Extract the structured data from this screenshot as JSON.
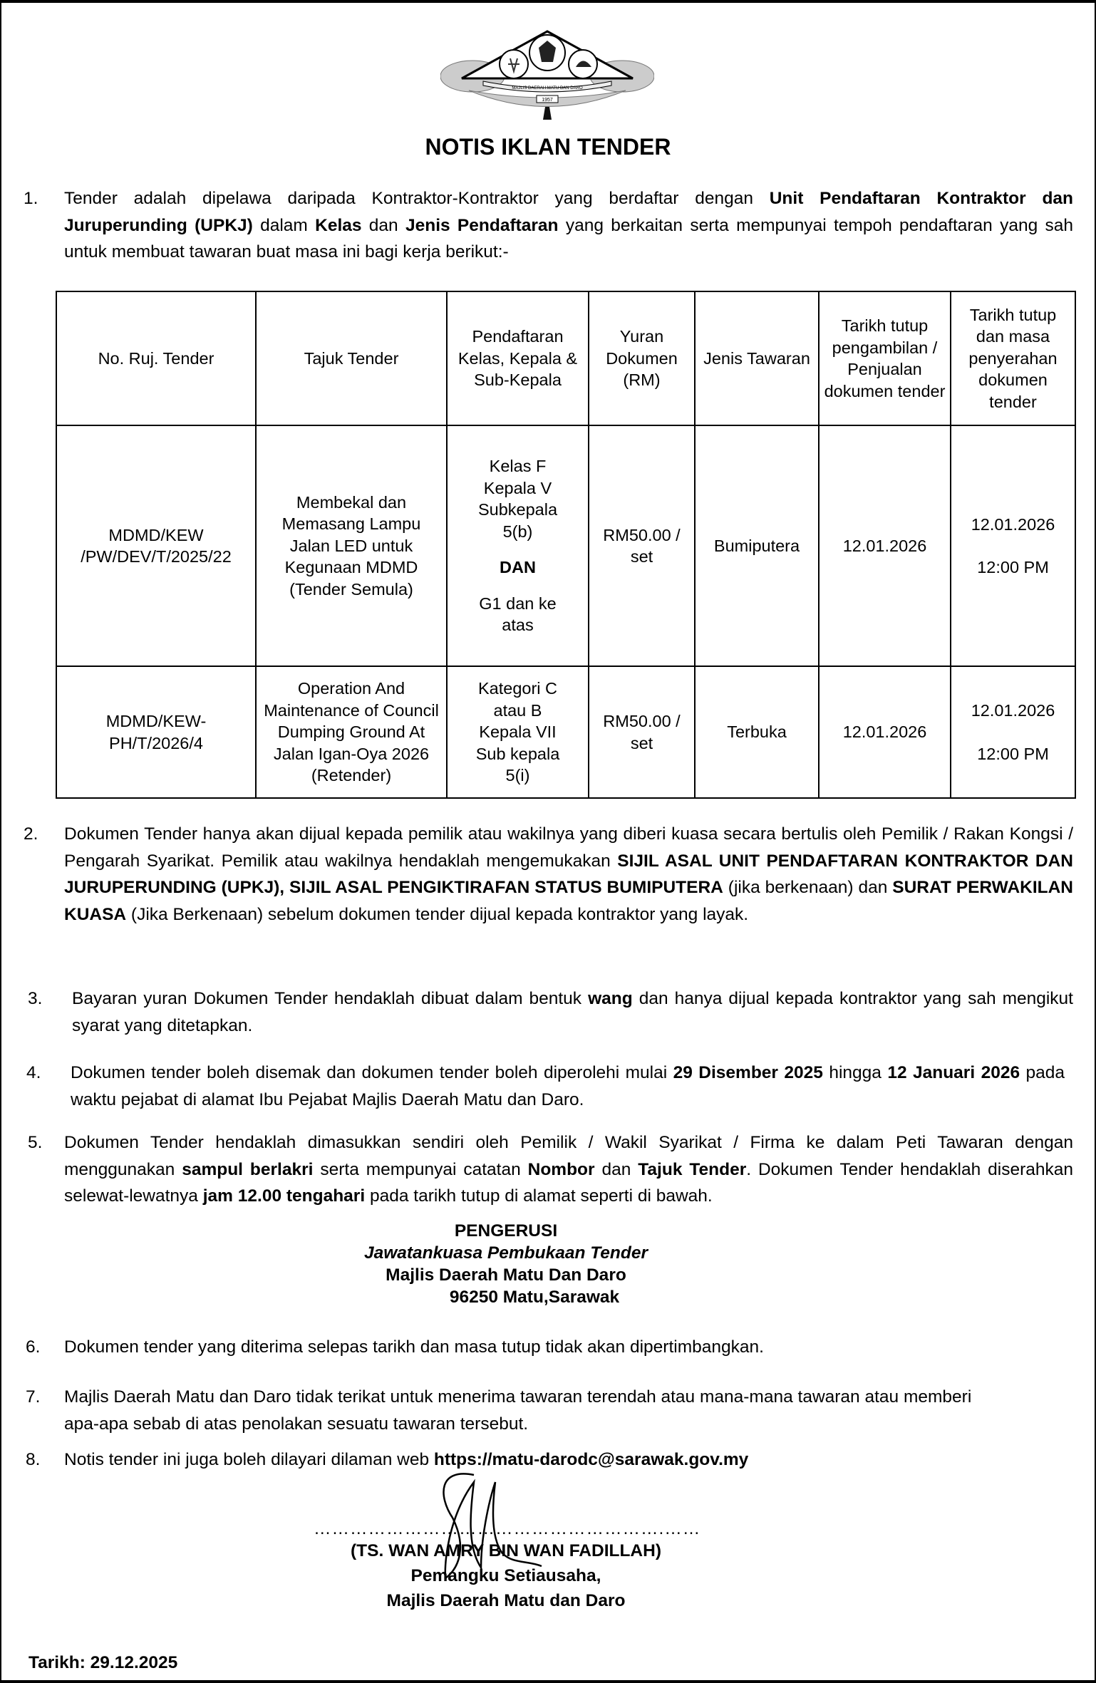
{
  "logo": {
    "text": "MAJLIS DAERAH MATU DAN DARO",
    "year": "1957"
  },
  "title": "NOTIS IKLAN TENDER",
  "paragraphs": [
    {
      "num": "1.",
      "segments": [
        {
          "t": "Tender adalah dipelawa daripada Kontraktor-Kontraktor yang berdaftar dengan "
        },
        {
          "t": "Unit Pendaftaran Kontraktor dan Juruperunding (UPKJ)",
          "b": true
        },
        {
          "t": " dalam "
        },
        {
          "t": "Kelas",
          "b": true
        },
        {
          "t": " dan "
        },
        {
          "t": "Jenis Pendaftaran",
          "b": true
        },
        {
          "t": " yang berkaitan serta mempunyai tempoh pendaftaran yang sah untuk membuat tawaran buat masa ini bagi kerja berikut:-"
        }
      ]
    },
    {
      "num": "2.",
      "segments": [
        {
          "t": "Dokumen Tender hanya akan dijual kepada pemilik atau wakilnya yang diberi kuasa secara  bertulis oleh Pemilik / Rakan Kongsi / Pengarah Syarikat. Pemilik atau wakilnya hendaklah mengemukakan "
        },
        {
          "t": "SIJIL ASAL UNIT PENDAFTARAN KONTRAKTOR DAN JURUPERUNDING (UPKJ), SIJIL ASAL PENGIKTIRAFAN STATUS BUMIPUTERA",
          "b": true
        },
        {
          "t": " (jika berkenaan) dan "
        },
        {
          "t": "SURAT PERWAKILAN KUASA",
          "b": true
        },
        {
          "t": " (Jika Berkenaan) sebelum dokumen tender dijual kepada kontraktor yang layak."
        }
      ]
    },
    {
      "num": "3.",
      "segments": [
        {
          "t": "Bayaran yuran Dokumen Tender hendaklah dibuat dalam bentuk "
        },
        {
          "t": "wang",
          "b": true
        },
        {
          "t": " dan hanya dijual kepada kontraktor yang sah mengikut syarat yang ditetapkan."
        }
      ]
    },
    {
      "num": "4.",
      "segments": [
        {
          "t": "Dokumen tender boleh disemak dan dokumen tender boleh diperolehi mulai "
        },
        {
          "t": "29 Disember 2025",
          "b": true
        },
        {
          "t": " hingga "
        },
        {
          "t": "12 Januari 2026",
          "b": true
        },
        {
          "t": " pada waktu pejabat di alamat Ibu Pejabat Majlis Daerah Matu dan Daro."
        }
      ]
    },
    {
      "num": "5.",
      "segments": [
        {
          "t": "Dokumen Tender hendaklah dimasukkan sendiri oleh Pemilik / Wakil Syarikat / Firma ke dalam  Peti Tawaran dengan menggunakan "
        },
        {
          "t": "sampul berlakri",
          "b": true
        },
        {
          "t": " serta mempunyai catatan "
        },
        {
          "t": "Nombor",
          "b": true
        },
        {
          "t": " dan "
        },
        {
          "t": "Tajuk Tender",
          "b": true
        },
        {
          "t": ". Dokumen Tender hendaklah diserahkan selewat-lewatnya "
        },
        {
          "t": "jam 12.00 tengahari",
          "b": true
        },
        {
          "t": " pada tarikh tutup di alamat seperti di bawah."
        }
      ]
    },
    {
      "num": "6.",
      "segments": [
        {
          "t": "Dokumen tender yang diterima selepas tarikh dan masa tutup tidak akan dipertimbangkan."
        }
      ]
    },
    {
      "num": "7.",
      "segments": [
        {
          "t": "Majlis Daerah Matu dan Daro tidak terikat untuk menerima tawaran terendah atau mana-mana tawaran atau memberi apa-apa sebab di atas penolakan sesuatu tawaran tersebut."
        }
      ]
    },
    {
      "num": "8.",
      "segments": [
        {
          "t": "Notis tender ini juga boleh dilayari dilaman web "
        },
        {
          "t": "https://matu-darodc@sarawak.gov.my",
          "b": true
        }
      ]
    }
  ],
  "table": {
    "headers": [
      "No. Ruj. Tender",
      "Tajuk Tender",
      "Pendaftaran Kelas, Kepala & Sub-Kepala",
      "Yuran Dokumen (RM)",
      "Jenis Tawaran",
      "Tarikh tutup pengambilan / Penjualan dokumen tender",
      "Tarikh tutup dan masa penyerahan dokumen tender"
    ],
    "rows": [
      {
        "ref": "MDMD/KEW /PW/DEV/T/2025/22",
        "title": "Membekal dan Memasang Lampu Jalan LED untuk Kegunaan MDMD (Tender Semula)",
        "reg_lines": [
          "Kelas F",
          "Kepala V",
          "Subkepala",
          "5(b)",
          "",
          "DAN",
          "",
          "G1 dan ke",
          "atas"
        ],
        "fee": "RM50.00 / set",
        "type": "Bumiputera",
        "close_sale": "12.01.2026",
        "close_date": "12.01.2026",
        "close_time": "12:00 PM"
      },
      {
        "ref": "MDMD/KEW-PH/T/2026/4",
        "title": "Operation And Maintenance of Council Dumping Ground At Jalan Igan-Oya 2026 (Retender)",
        "reg_lines": [
          "Kategori C",
          "atau B",
          "Kepala VII",
          "Sub kepala",
          "5(i)"
        ],
        "fee": "RM50.00 / set",
        "type": "Terbuka",
        "close_sale": "12.01.2026",
        "close_date": "12.01.2026",
        "close_time": "12:00 PM"
      }
    ]
  },
  "chairman": {
    "lines": [
      "PENGERUSI",
      "Jawatankuasa Pembukaan Tender",
      "Majlis Daerah Matu Dan Daro",
      "96250 Matu,Sarawak"
    ]
  },
  "signatory": {
    "dots": "………………………………………………….……",
    "name": "(TS. WAN AMRY BIN WAN FADILLAH)",
    "position": "Pemangku Setiausaha,",
    "org": "Majlis Daerah Matu dan Daro"
  },
  "date": "Tarikh: 29.12.2025"
}
